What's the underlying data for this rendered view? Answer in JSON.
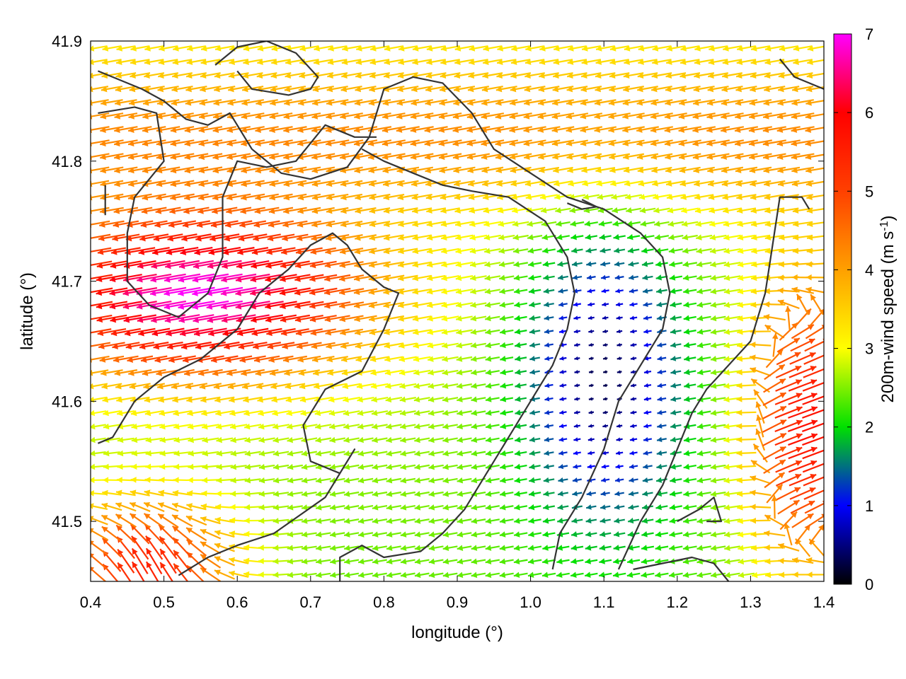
{
  "chart_data": {
    "type": "vector-field",
    "xlabel": "longitude (°)",
    "ylabel": "latitude (°)",
    "colorbar": {
      "label_main": "200m-wind speed (m s",
      "label_exp": "-1",
      "label_close": ")",
      "range": [
        0,
        7
      ],
      "ticks": [
        "0",
        "1",
        "2",
        "3",
        "4",
        "5",
        "6",
        "7"
      ],
      "colors": [
        "#000000",
        "#0000ff",
        "#00e000",
        "#ffff00",
        "#ffa000",
        "#ff4000",
        "#ff0000",
        "#ff00ff"
      ]
    },
    "xlim": [
      0.4,
      1.4
    ],
    "ylim": [
      41.45,
      41.9
    ],
    "xticks": [
      "0.4",
      "0.5",
      "0.6",
      "0.7",
      "0.8",
      "0.9",
      "1.0",
      "1.1",
      "1.2",
      "1.3",
      "1.4"
    ],
    "yticks": [
      "41.5",
      "41.6",
      "41.7",
      "41.8",
      "41.9"
    ],
    "wind_field_regions": [
      {
        "name": "jet",
        "center": [
          0.55,
          41.69
        ],
        "speed": 7.0,
        "direction_deg": 190
      },
      {
        "name": "southwest-rotation",
        "center": [
          0.48,
          41.46
        ],
        "speed": 5.5,
        "direction_deg": 120
      },
      {
        "name": "east-flow",
        "center": [
          1.38,
          41.58
        ],
        "speed": 5.8,
        "direction_deg": 20
      },
      {
        "name": "calm-basin",
        "center": [
          1.1,
          41.62
        ],
        "speed": 0.3,
        "direction_deg": 0
      }
    ],
    "contours": [
      {
        "name": "contour-1",
        "points": [
          [
            0.41,
            41.875
          ],
          [
            0.47,
            41.86
          ],
          [
            0.5,
            41.85
          ],
          [
            0.53,
            41.835
          ],
          [
            0.56,
            41.83
          ],
          [
            0.59,
            41.84
          ],
          [
            0.62,
            41.81
          ],
          [
            0.66,
            41.79
          ],
          [
            0.7,
            41.785
          ],
          [
            0.75,
            41.795
          ],
          [
            0.78,
            41.82
          ],
          [
            0.8,
            41.86
          ],
          [
            0.84,
            41.87
          ],
          [
            0.88,
            41.865
          ],
          [
            0.92,
            41.84
          ],
          [
            0.95,
            41.81
          ],
          [
            1.0,
            41.79
          ],
          [
            1.05,
            41.77
          ],
          [
            1.1,
            41.76
          ],
          [
            1.15,
            41.74
          ],
          [
            1.18,
            41.72
          ],
          [
            1.19,
            41.69
          ],
          [
            1.18,
            41.66
          ],
          [
            1.15,
            41.63
          ],
          [
            1.12,
            41.6
          ],
          [
            1.1,
            41.56
          ],
          [
            1.07,
            41.52
          ],
          [
            1.04,
            41.49
          ],
          [
            1.03,
            41.46
          ]
        ]
      },
      {
        "name": "contour-2",
        "points": [
          [
            0.41,
            41.84
          ],
          [
            0.46,
            41.845
          ],
          [
            0.49,
            41.84
          ],
          [
            0.5,
            41.8
          ],
          [
            0.46,
            41.77
          ],
          [
            0.45,
            41.74
          ],
          [
            0.45,
            41.7
          ],
          [
            0.48,
            41.68
          ],
          [
            0.52,
            41.67
          ],
          [
            0.56,
            41.69
          ],
          [
            0.58,
            41.72
          ],
          [
            0.58,
            41.77
          ],
          [
            0.6,
            41.8
          ],
          [
            0.64,
            41.795
          ],
          [
            0.68,
            41.8
          ],
          [
            0.72,
            41.83
          ],
          [
            0.76,
            41.82
          ],
          [
            0.79,
            41.82
          ]
        ]
      },
      {
        "name": "contour-3",
        "points": [
          [
            0.41,
            41.565
          ],
          [
            0.43,
            41.57
          ],
          [
            0.46,
            41.6
          ],
          [
            0.5,
            41.62
          ],
          [
            0.55,
            41.635
          ],
          [
            0.6,
            41.66
          ],
          [
            0.63,
            41.69
          ],
          [
            0.67,
            41.71
          ],
          [
            0.7,
            41.73
          ],
          [
            0.73,
            41.74
          ],
          [
            0.75,
            41.73
          ],
          [
            0.77,
            41.71
          ],
          [
            0.8,
            41.695
          ],
          [
            0.82,
            41.69
          ],
          [
            0.8,
            41.66
          ],
          [
            0.77,
            41.625
          ],
          [
            0.72,
            41.61
          ],
          [
            0.69,
            41.58
          ],
          [
            0.7,
            41.55
          ],
          [
            0.74,
            41.54
          ],
          [
            0.76,
            41.56
          ],
          [
            0.72,
            41.52
          ],
          [
            0.65,
            41.49
          ],
          [
            0.6,
            41.48
          ],
          [
            0.56,
            41.47
          ],
          [
            0.52,
            41.455
          ]
        ]
      },
      {
        "name": "contour-4",
        "points": [
          [
            0.77,
            41.81
          ],
          [
            0.8,
            41.8
          ],
          [
            0.84,
            41.79
          ],
          [
            0.88,
            41.78
          ],
          [
            0.92,
            41.775
          ],
          [
            0.97,
            41.77
          ],
          [
            1.02,
            41.75
          ],
          [
            1.05,
            41.72
          ],
          [
            1.06,
            41.69
          ],
          [
            1.05,
            41.66
          ],
          [
            1.03,
            41.63
          ],
          [
            1.0,
            41.6
          ],
          [
            0.97,
            41.57
          ],
          [
            0.94,
            41.54
          ],
          [
            0.91,
            41.51
          ],
          [
            0.88,
            41.49
          ],
          [
            0.85,
            41.475
          ],
          [
            0.8,
            41.47
          ],
          [
            0.77,
            41.48
          ],
          [
            0.74,
            41.47
          ],
          [
            0.74,
            41.45
          ]
        ]
      },
      {
        "name": "contour-5",
        "points": [
          [
            1.12,
            41.46
          ],
          [
            1.15,
            41.5
          ],
          [
            1.18,
            41.53
          ],
          [
            1.2,
            41.56
          ],
          [
            1.22,
            41.59
          ],
          [
            1.24,
            41.61
          ],
          [
            1.27,
            41.63
          ],
          [
            1.3,
            41.65
          ],
          [
            1.32,
            41.69
          ],
          [
            1.33,
            41.73
          ],
          [
            1.34,
            41.77
          ],
          [
            1.37,
            41.77
          ],
          [
            1.38,
            41.76
          ]
        ]
      },
      {
        "name": "contour-6",
        "points": [
          [
            1.14,
            41.46
          ],
          [
            1.18,
            41.465
          ],
          [
            1.22,
            41.47
          ],
          [
            1.25,
            41.465
          ],
          [
            1.27,
            41.45
          ]
        ]
      },
      {
        "name": "contour-7",
        "points": [
          [
            0.57,
            41.88
          ],
          [
            0.6,
            41.895
          ],
          [
            0.64,
            41.9
          ],
          [
            0.68,
            41.89
          ],
          [
            0.71,
            41.87
          ],
          [
            0.7,
            41.86
          ],
          [
            0.67,
            41.855
          ],
          [
            0.62,
            41.86
          ],
          [
            0.6,
            41.875
          ]
        ]
      },
      {
        "name": "contour-8",
        "points": [
          [
            1.34,
            41.885
          ],
          [
            1.36,
            41.87
          ],
          [
            1.38,
            41.865
          ],
          [
            1.4,
            41.86
          ]
        ]
      },
      {
        "name": "contour-9",
        "points": [
          [
            1.2,
            41.5
          ],
          [
            1.23,
            41.51
          ],
          [
            1.25,
            41.52
          ],
          [
            1.26,
            41.5
          ],
          [
            1.24,
            41.5
          ]
        ]
      },
      {
        "name": "contour-10",
        "points": [
          [
            1.05,
            41.765
          ],
          [
            1.07,
            41.76
          ],
          [
            1.09,
            41.762
          ],
          [
            1.07,
            41.768
          ]
        ]
      },
      {
        "name": "contour-11",
        "points": [
          [
            0.42,
            41.755
          ],
          [
            0.42,
            41.78
          ]
        ]
      }
    ]
  }
}
